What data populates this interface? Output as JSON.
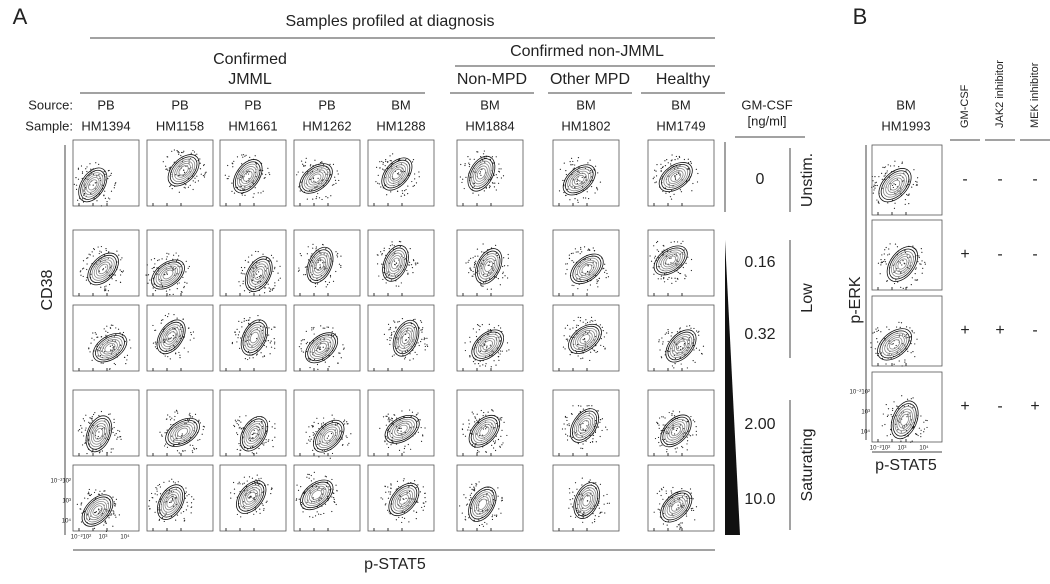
{
  "panel_a": {
    "label": "A",
    "header": "Samples profiled at diagnosis",
    "group_jmml": [
      "Confirmed",
      "JMML"
    ],
    "group_non_jmml": "Confirmed non-JMML",
    "subgroups": [
      "Non-MPD",
      "Other MPD",
      "Healthy"
    ],
    "row_labels": [
      "Source:",
      "Sample:"
    ],
    "samples": [
      {
        "source": "PB",
        "id": "HM1394"
      },
      {
        "source": "PB",
        "id": "HM1158"
      },
      {
        "source": "PB",
        "id": "HM1661"
      },
      {
        "source": "PB",
        "id": "HM1262"
      },
      {
        "source": "BM",
        "id": "HM1288"
      },
      {
        "source": "BM",
        "id": "HM1884"
      },
      {
        "source": "BM",
        "id": "HM1802"
      },
      {
        "source": "BM",
        "id": "HM1749"
      }
    ],
    "stim_header": [
      "GM-CSF",
      "[ng/ml]"
    ],
    "concentrations": [
      "0",
      "0.16",
      "0.32",
      "2.00",
      "10.0"
    ],
    "stim_levels": [
      "Unstim.",
      "Low",
      "Saturating"
    ],
    "y_axis": "CD38",
    "x_axis": "p-STAT5",
    "y_ticks": [
      "10⁴",
      "10³",
      "10⁻²10²"
    ],
    "x_ticks": [
      "10⁻²10²",
      "10³",
      "10⁴"
    ]
  },
  "panel_b": {
    "label": "B",
    "sample": {
      "source": "BM",
      "id": "HM1993"
    },
    "treatments": [
      "GM-CSF",
      "JAK2 inhibitor",
      "MEK inhibitor"
    ],
    "conditions": [
      [
        "-",
        "-",
        "-"
      ],
      [
        "+",
        "-",
        "-"
      ],
      [
        "+",
        "+",
        "-"
      ],
      [
        "+",
        "-",
        "+"
      ]
    ],
    "y_axis": "p-ERK",
    "x_axis": "p-STAT5",
    "y_ticks": [
      "10⁴",
      "10³",
      "10⁻²10²"
    ],
    "x_ticks": [
      "10⁻²10²",
      "10³",
      "10⁴"
    ]
  }
}
